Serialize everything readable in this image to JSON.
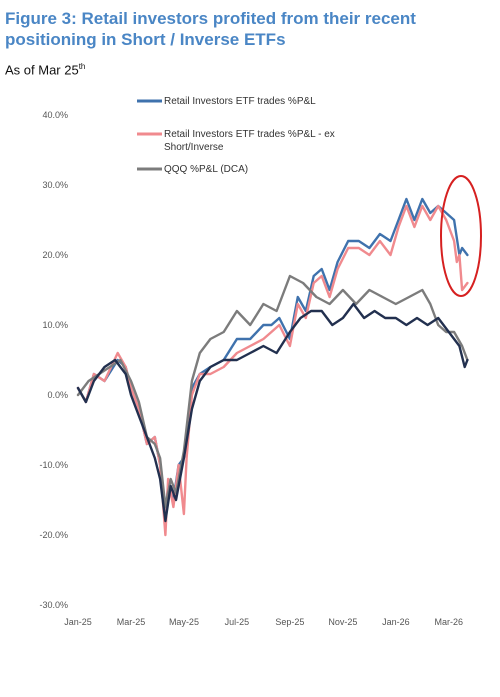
{
  "header": {
    "title": "Figure 3: Retail investors profited from their recent positioning in Short / Inverse ETFs",
    "subtitle_main": "As of Mar 25",
    "subtitle_sup": "th"
  },
  "colors": {
    "series1": "#3f72ad",
    "series2": "#f08a8e",
    "series3": "#7c7c7c",
    "series4": "#22304f",
    "annotation": "#d62020"
  },
  "chart_data": {
    "type": "line",
    "title": "",
    "xlabel": "",
    "ylabel": "",
    "ylim": [
      -30,
      40
    ],
    "yticks": [
      "40.0%",
      "30.0%",
      "20.0%",
      "10.0%",
      "0.0%",
      "-10.0%",
      "-20.0%",
      "-30.0%"
    ],
    "ytick_values": [
      40,
      30,
      20,
      10,
      0,
      -10,
      -20,
      -30
    ],
    "xticks": [
      "Jan-25",
      "Mar-25",
      "May-25",
      "Jul-25",
      "Sep-25",
      "Nov-25",
      "Jan-26",
      "Mar-26"
    ],
    "xtick_values": [
      0,
      2,
      4,
      6,
      8,
      10,
      12,
      14
    ],
    "xlim": [
      0,
      14.8
    ],
    "legend_position": "top",
    "legend": [
      {
        "label": "Retail Investors ETF trades %P&L",
        "color_key": "series1"
      },
      {
        "label": "Retail Investors ETF trades %P&L - ex Short/Inverse",
        "color_key": "series2"
      },
      {
        "label": "QQQ %P&L (DCA)",
        "color_key": "series3"
      }
    ],
    "series": [
      {
        "name": "Retail Investors ETF trades %P&L",
        "color_key": "series1",
        "x": [
          0,
          0.3,
          0.6,
          1.0,
          1.5,
          1.8,
          2.0,
          2.3,
          2.6,
          2.9,
          3.1,
          3.3,
          3.4,
          3.6,
          3.8,
          4.0,
          4.3,
          4.6,
          5.0,
          5.5,
          6.0,
          6.5,
          7.0,
          7.3,
          7.6,
          8.0,
          8.3,
          8.6,
          8.9,
          9.2,
          9.5,
          9.8,
          10.2,
          10.6,
          11.0,
          11.4,
          11.8,
          12.1,
          12.4,
          12.7,
          13.0,
          13.3,
          13.6,
          13.9,
          14.2,
          14.4,
          14.5,
          14.7
        ],
        "values": [
          1,
          -1,
          3,
          2,
          5,
          4,
          1,
          -2,
          -7,
          -6,
          -10,
          -17,
          -13,
          -15,
          -10,
          -9,
          1,
          3,
          4,
          5,
          8,
          8,
          10,
          10,
          11,
          8,
          14,
          12,
          17,
          18,
          15,
          19,
          22,
          22,
          21,
          23,
          22,
          25,
          28,
          25,
          28,
          26,
          27,
          26,
          25,
          20,
          21,
          20
        ]
      },
      {
        "name": "Retail Investors ETF trades %P&L - ex Short/Inverse",
        "color_key": "series2",
        "x": [
          0,
          0.3,
          0.6,
          1.0,
          1.5,
          1.8,
          2.0,
          2.3,
          2.6,
          2.9,
          3.1,
          3.3,
          3.4,
          3.6,
          3.8,
          4.0,
          4.1,
          4.3,
          4.6,
          5.0,
          5.5,
          6.0,
          6.5,
          7.0,
          7.3,
          7.6,
          8.0,
          8.3,
          8.6,
          8.9,
          9.2,
          9.5,
          9.8,
          10.2,
          10.6,
          11.0,
          11.4,
          11.8,
          12.1,
          12.4,
          12.7,
          13.0,
          13.3,
          13.6,
          13.9,
          14.2,
          14.3,
          14.4,
          14.5,
          14.7
        ],
        "values": [
          1,
          -1,
          3,
          2,
          6,
          4,
          1,
          -2,
          -7,
          -6,
          -10,
          -20,
          -12,
          -16,
          -10,
          -17,
          -9,
          0,
          3,
          3,
          4,
          6,
          7,
          8,
          9,
          10,
          7,
          13,
          11,
          16,
          17,
          14,
          18,
          21,
          21,
          20,
          22,
          20,
          24,
          27,
          24,
          27,
          25,
          27,
          25,
          22,
          19,
          20,
          15,
          16
        ]
      },
      {
        "name": "QQQ %P&L (DCA)",
        "color_key": "series3",
        "x": [
          0,
          0.4,
          0.8,
          1.2,
          1.6,
          2.0,
          2.3,
          2.6,
          2.9,
          3.1,
          3.3,
          3.5,
          3.7,
          4.0,
          4.3,
          4.6,
          5.0,
          5.5,
          6.0,
          6.5,
          7.0,
          7.5,
          8.0,
          8.5,
          9.0,
          9.5,
          10.0,
          10.5,
          11.0,
          11.5,
          12.0,
          12.5,
          13.0,
          13.3,
          13.6,
          13.9,
          14.2,
          14.5,
          14.7
        ],
        "values": [
          0,
          2,
          3,
          4,
          5,
          2,
          -1,
          -6,
          -7,
          -9,
          -16,
          -12,
          -14,
          -8,
          2,
          6,
          8,
          9,
          12,
          10,
          13,
          12,
          17,
          16,
          14,
          13,
          15,
          13,
          15,
          14,
          13,
          14,
          15,
          13,
          10,
          9,
          9,
          7,
          5
        ]
      },
      {
        "name": "",
        "color_key": "series4",
        "x": [
          0,
          0.3,
          0.6,
          1.0,
          1.4,
          1.8,
          2.0,
          2.3,
          2.6,
          2.9,
          3.1,
          3.3,
          3.5,
          3.7,
          4.0,
          4.3,
          4.6,
          5.0,
          5.5,
          6.0,
          6.5,
          7.0,
          7.5,
          8.0,
          8.4,
          8.8,
          9.2,
          9.6,
          10.0,
          10.4,
          10.8,
          11.2,
          11.6,
          12.0,
          12.4,
          12.8,
          13.2,
          13.6,
          14.0,
          14.2,
          14.4,
          14.6,
          14.7
        ],
        "values": [
          1,
          -1,
          2,
          4,
          5,
          3,
          0,
          -3,
          -6,
          -9,
          -12,
          -18,
          -13,
          -15,
          -9,
          -2,
          2,
          4,
          5,
          5,
          6,
          7,
          6,
          9,
          11,
          12,
          12,
          10,
          11,
          13,
          11,
          12,
          11,
          11,
          10,
          11,
          10,
          11,
          9,
          8,
          7,
          4,
          5
        ]
      }
    ]
  }
}
